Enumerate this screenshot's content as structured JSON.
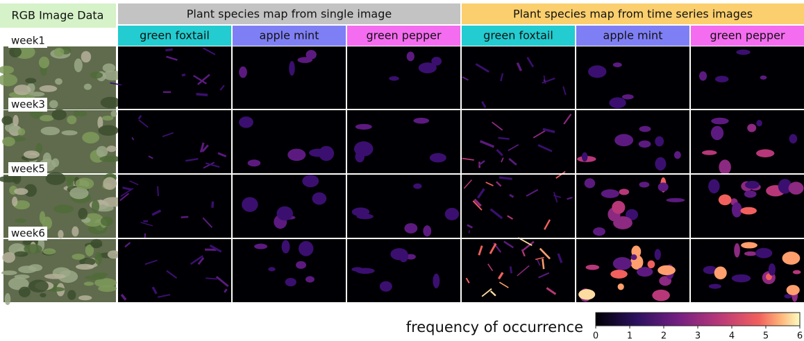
{
  "left_header": "RGB Image Data",
  "groups": [
    {
      "title": "Plant species map from single image",
      "columns": [
        "green foxtail",
        "apple mint",
        "green pepper"
      ]
    },
    {
      "title": "Plant species map from time series images",
      "columns": [
        "green foxtail",
        "apple mint",
        "green pepper"
      ]
    }
  ],
  "rows": [
    "week1",
    "week3",
    "week5",
    "week6"
  ],
  "colorbar": {
    "label": "frequency of occurrence",
    "lim": [
      0,
      6
    ],
    "ticks": [
      0,
      1,
      2,
      3,
      4,
      5,
      6
    ]
  }
}
